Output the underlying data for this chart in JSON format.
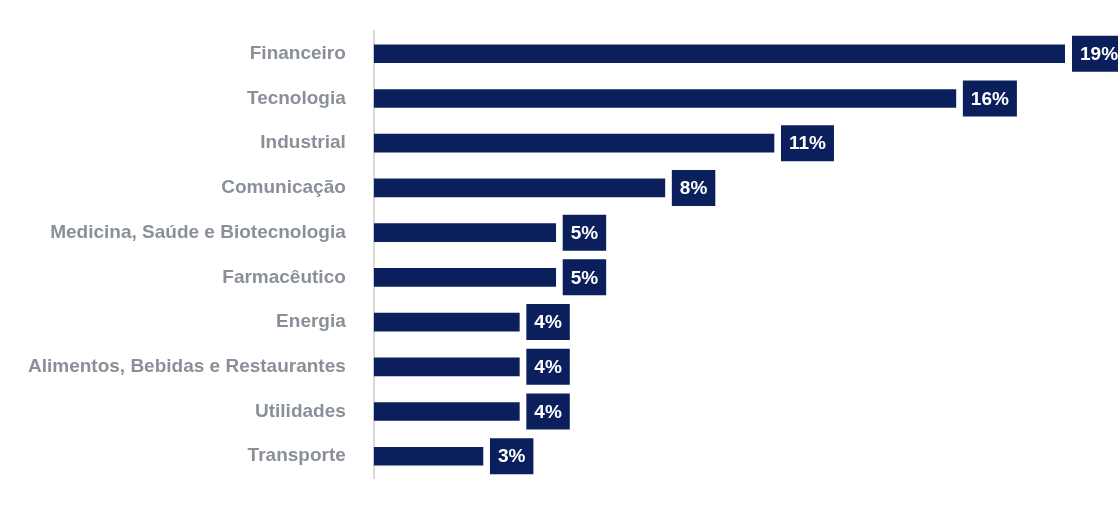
{
  "chart_data": {
    "type": "bar",
    "orientation": "horizontal",
    "grid": false,
    "legend": false,
    "color": "#0b1f5c",
    "categories": [
      "Financeiro",
      "Tecnologia",
      "Industrial",
      "Comunicação",
      "Medicina, Saúde e Biotecnologia",
      "Farmacêutico",
      "Energia",
      "Alimentos, Bebidas e Restaurantes",
      "Utilidades",
      "Transporte"
    ],
    "values": [
      19,
      16,
      11,
      8,
      5,
      5,
      4,
      4,
      4,
      3
    ],
    "value_labels": [
      "19%",
      "16%",
      "11%",
      "8%",
      "5%",
      "5%",
      "4%",
      "4%",
      "4%",
      "3%"
    ]
  }
}
